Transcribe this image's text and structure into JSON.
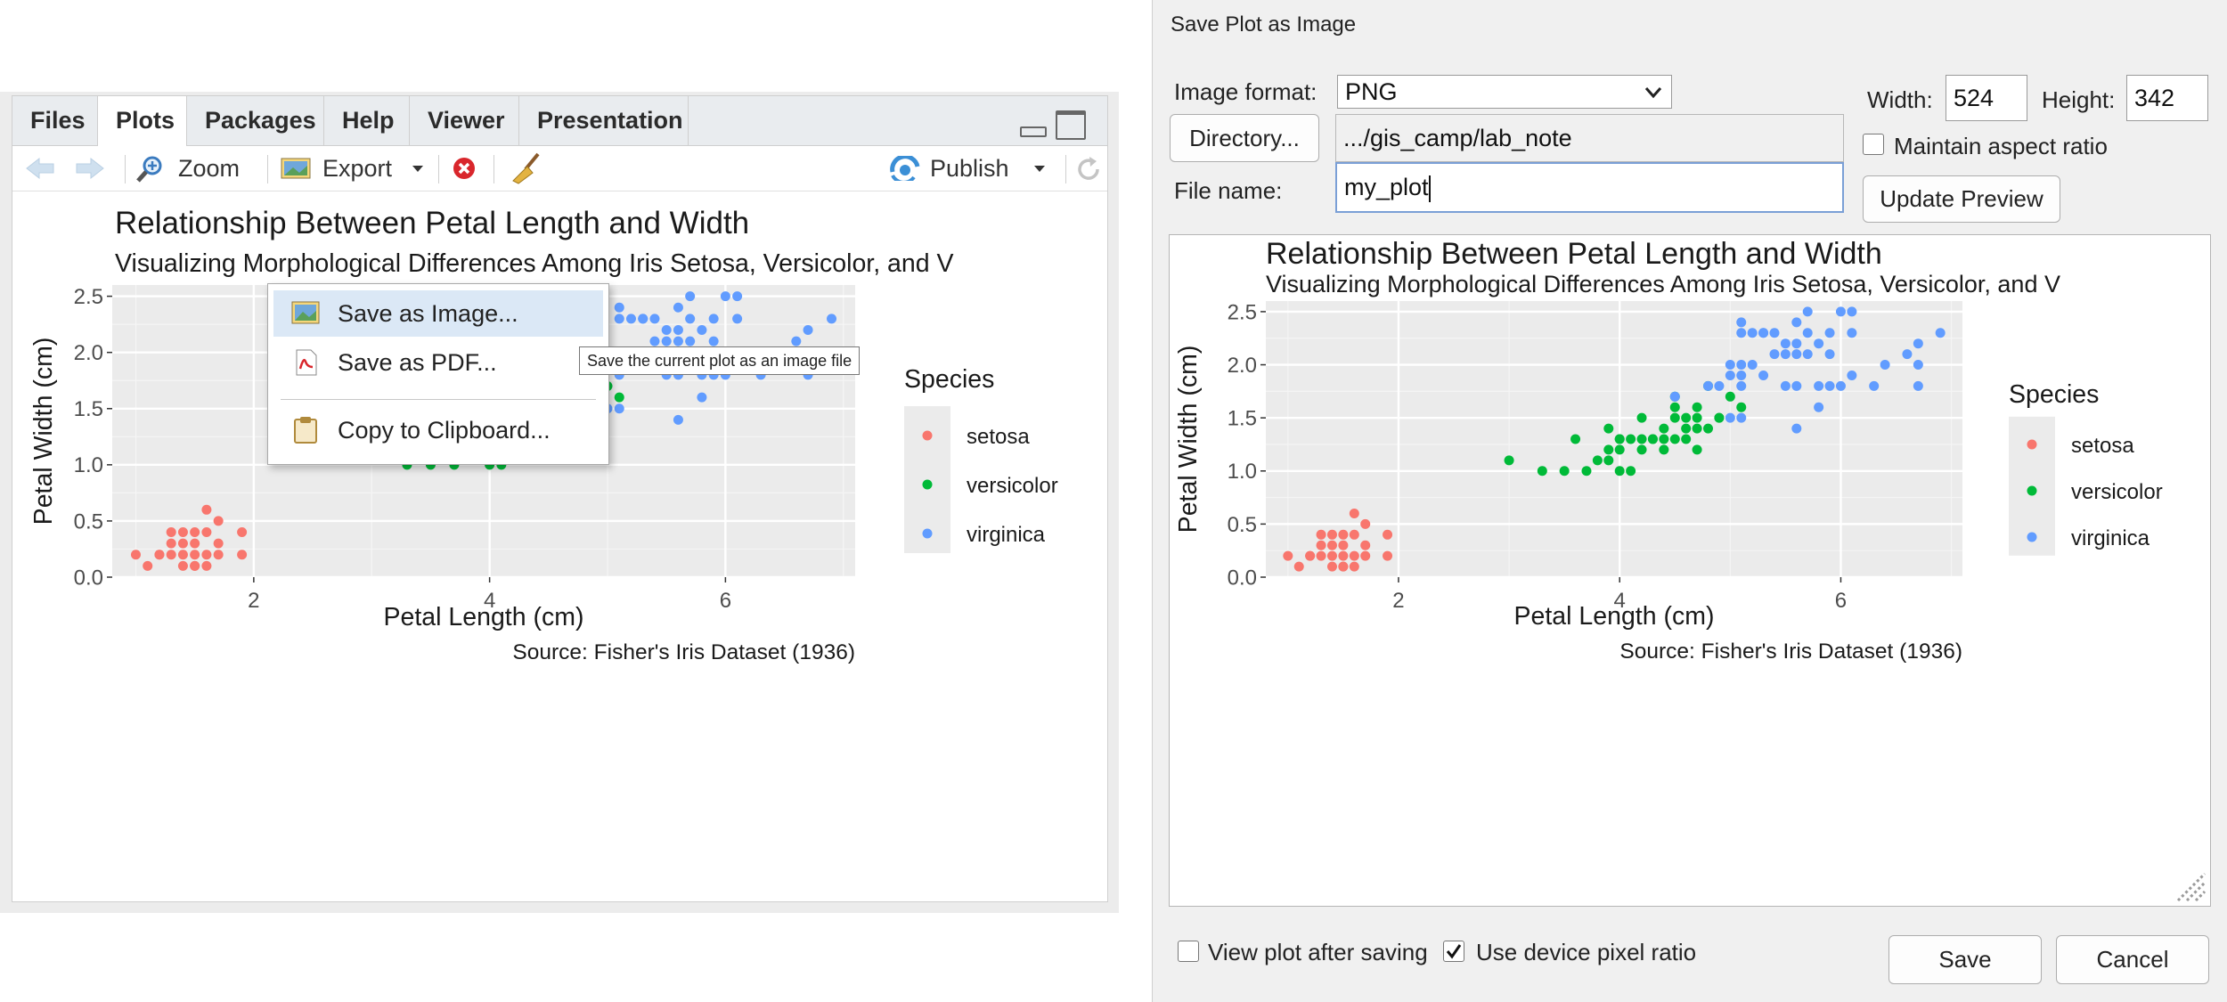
{
  "plots_pane": {
    "tabs": [
      "Files",
      "Plots",
      "Packages",
      "Help",
      "Viewer",
      "Presentation"
    ],
    "active_tab": "Plots",
    "toolbar": {
      "zoom_label": "Zoom",
      "export_label": "Export",
      "publish_label": "Publish"
    },
    "export_menu": {
      "items": [
        {
          "label": "Save as Image...",
          "icon": "image-icon",
          "highlighted": true
        },
        {
          "label": "Save as PDF...",
          "icon": "pdf-icon",
          "highlighted": false
        },
        {
          "label": "Copy to Clipboard...",
          "icon": "clipboard-icon",
          "highlighted": false
        }
      ],
      "tooltip": "Save the current plot as an image file"
    },
    "plot_title_fragment": "Relationsh",
    "plot_title_fragment2": "gth and Width",
    "plot_subtitle_fragment": "Visualizing",
    "plot_subtitle_fragment2": "Versicolor, and V"
  },
  "dialog": {
    "title": "Save Plot as Image",
    "image_format_label": "Image format:",
    "image_format_value": "PNG",
    "directory_button": "Directory...",
    "directory_value": ".../gis_camp/lab_note",
    "file_name_label": "File name:",
    "file_name_value": "my_plot",
    "width_label": "Width:",
    "width_value": "524",
    "height_label": "Height:",
    "height_value": "342",
    "maintain_aspect_label": "Maintain aspect ratio",
    "maintain_aspect_checked": false,
    "update_preview_button": "Update Preview",
    "view_after_saving_label": "View plot after saving",
    "view_after_saving_checked": false,
    "device_pixel_ratio_label": "Use device pixel ratio",
    "device_pixel_ratio_checked": true,
    "save_button": "Save",
    "cancel_button": "Cancel"
  },
  "chart_data": {
    "type": "scatter",
    "title": "Relationship Between Petal Length and Width",
    "subtitle": "Visualizing Morphological Differences Among Iris Setosa, Versicolor, and V",
    "xlabel": "Petal Length (cm)",
    "ylabel": "Petal Width (cm)",
    "caption": "Source: Fisher's Iris Dataset (1936)",
    "xlim": [
      0.8,
      7.1
    ],
    "ylim": [
      0,
      2.6
    ],
    "x_ticks": [
      2,
      4,
      6
    ],
    "y_ticks": [
      0.0,
      0.5,
      1.0,
      1.5,
      2.0,
      2.5
    ],
    "y_tick_labels": [
      "0.0",
      "0.5",
      "1.0",
      "1.5",
      "2.0",
      "2.5"
    ],
    "grid": true,
    "legend_title": "Species",
    "legend_position": "right",
    "series": [
      {
        "name": "setosa",
        "color": "#F8766D",
        "points": [
          [
            1.0,
            0.2
          ],
          [
            1.1,
            0.1
          ],
          [
            1.2,
            0.2
          ],
          [
            1.3,
            0.2
          ],
          [
            1.3,
            0.3
          ],
          [
            1.3,
            0.4
          ],
          [
            1.4,
            0.1
          ],
          [
            1.4,
            0.2
          ],
          [
            1.4,
            0.3
          ],
          [
            1.5,
            0.1
          ],
          [
            1.5,
            0.2
          ],
          [
            1.5,
            0.3
          ],
          [
            1.5,
            0.4
          ],
          [
            1.6,
            0.2
          ],
          [
            1.6,
            0.4
          ],
          [
            1.6,
            0.6
          ],
          [
            1.7,
            0.2
          ],
          [
            1.7,
            0.3
          ],
          [
            1.7,
            0.5
          ],
          [
            1.9,
            0.2
          ],
          [
            1.9,
            0.4
          ],
          [
            1.6,
            0.1
          ],
          [
            1.4,
            0.4
          ],
          [
            1.5,
            0.1
          ],
          [
            1.2,
            0.2
          ]
        ]
      },
      {
        "name": "versicolor",
        "color": "#00BA38",
        "points": [
          [
            3.0,
            1.1
          ],
          [
            3.3,
            1.0
          ],
          [
            3.5,
            1.0
          ],
          [
            3.6,
            1.3
          ],
          [
            3.7,
            1.0
          ],
          [
            3.8,
            1.1
          ],
          [
            3.9,
            1.1
          ],
          [
            3.9,
            1.2
          ],
          [
            3.9,
            1.4
          ],
          [
            4.0,
            1.0
          ],
          [
            4.0,
            1.2
          ],
          [
            4.0,
            1.3
          ],
          [
            4.1,
            1.0
          ],
          [
            4.1,
            1.3
          ],
          [
            4.2,
            1.3
          ],
          [
            4.2,
            1.5
          ],
          [
            4.3,
            1.3
          ],
          [
            4.4,
            1.2
          ],
          [
            4.4,
            1.3
          ],
          [
            4.4,
            1.4
          ],
          [
            4.5,
            1.3
          ],
          [
            4.5,
            1.5
          ],
          [
            4.5,
            1.7
          ],
          [
            4.6,
            1.3
          ],
          [
            4.6,
            1.4
          ],
          [
            4.6,
            1.5
          ],
          [
            4.7,
            1.2
          ],
          [
            4.7,
            1.4
          ],
          [
            4.7,
            1.5
          ],
          [
            4.7,
            1.6
          ],
          [
            4.8,
            1.4
          ],
          [
            4.8,
            1.8
          ],
          [
            4.9,
            1.5
          ],
          [
            5.0,
            1.7
          ],
          [
            5.1,
            1.6
          ],
          [
            4.0,
            1.3
          ],
          [
            4.5,
            1.6
          ],
          [
            4.9,
            1.5
          ],
          [
            4.2,
            1.2
          ],
          [
            4.3,
            1.3
          ]
        ]
      },
      {
        "name": "virginica",
        "color": "#619CFF",
        "points": [
          [
            4.5,
            1.7
          ],
          [
            4.8,
            1.8
          ],
          [
            4.9,
            1.8
          ],
          [
            5.0,
            1.5
          ],
          [
            5.0,
            1.9
          ],
          [
            5.0,
            2.0
          ],
          [
            5.1,
            1.5
          ],
          [
            5.1,
            1.8
          ],
          [
            5.1,
            1.9
          ],
          [
            5.1,
            2.0
          ],
          [
            5.1,
            2.3
          ],
          [
            5.1,
            2.4
          ],
          [
            5.2,
            2.0
          ],
          [
            5.2,
            2.3
          ],
          [
            5.3,
            1.9
          ],
          [
            5.3,
            2.3
          ],
          [
            5.4,
            2.1
          ],
          [
            5.4,
            2.3
          ],
          [
            5.5,
            1.8
          ],
          [
            5.5,
            2.1
          ],
          [
            5.6,
            1.4
          ],
          [
            5.6,
            1.8
          ],
          [
            5.6,
            2.1
          ],
          [
            5.6,
            2.2
          ],
          [
            5.6,
            2.4
          ],
          [
            5.7,
            2.1
          ],
          [
            5.7,
            2.3
          ],
          [
            5.7,
            2.5
          ],
          [
            5.8,
            1.6
          ],
          [
            5.8,
            1.8
          ],
          [
            5.8,
            2.2
          ],
          [
            5.9,
            2.1
          ],
          [
            5.9,
            2.3
          ],
          [
            6.0,
            1.8
          ],
          [
            6.0,
            2.5
          ],
          [
            6.1,
            1.9
          ],
          [
            6.1,
            2.3
          ],
          [
            6.1,
            2.5
          ],
          [
            6.3,
            1.8
          ],
          [
            6.4,
            2.0
          ],
          [
            6.6,
            2.1
          ],
          [
            6.7,
            2.0
          ],
          [
            6.7,
            2.2
          ],
          [
            6.9,
            2.3
          ],
          [
            6.7,
            1.8
          ],
          [
            5.5,
            2.2
          ],
          [
            5.3,
            2.3
          ],
          [
            5.9,
            1.8
          ]
        ]
      }
    ]
  }
}
